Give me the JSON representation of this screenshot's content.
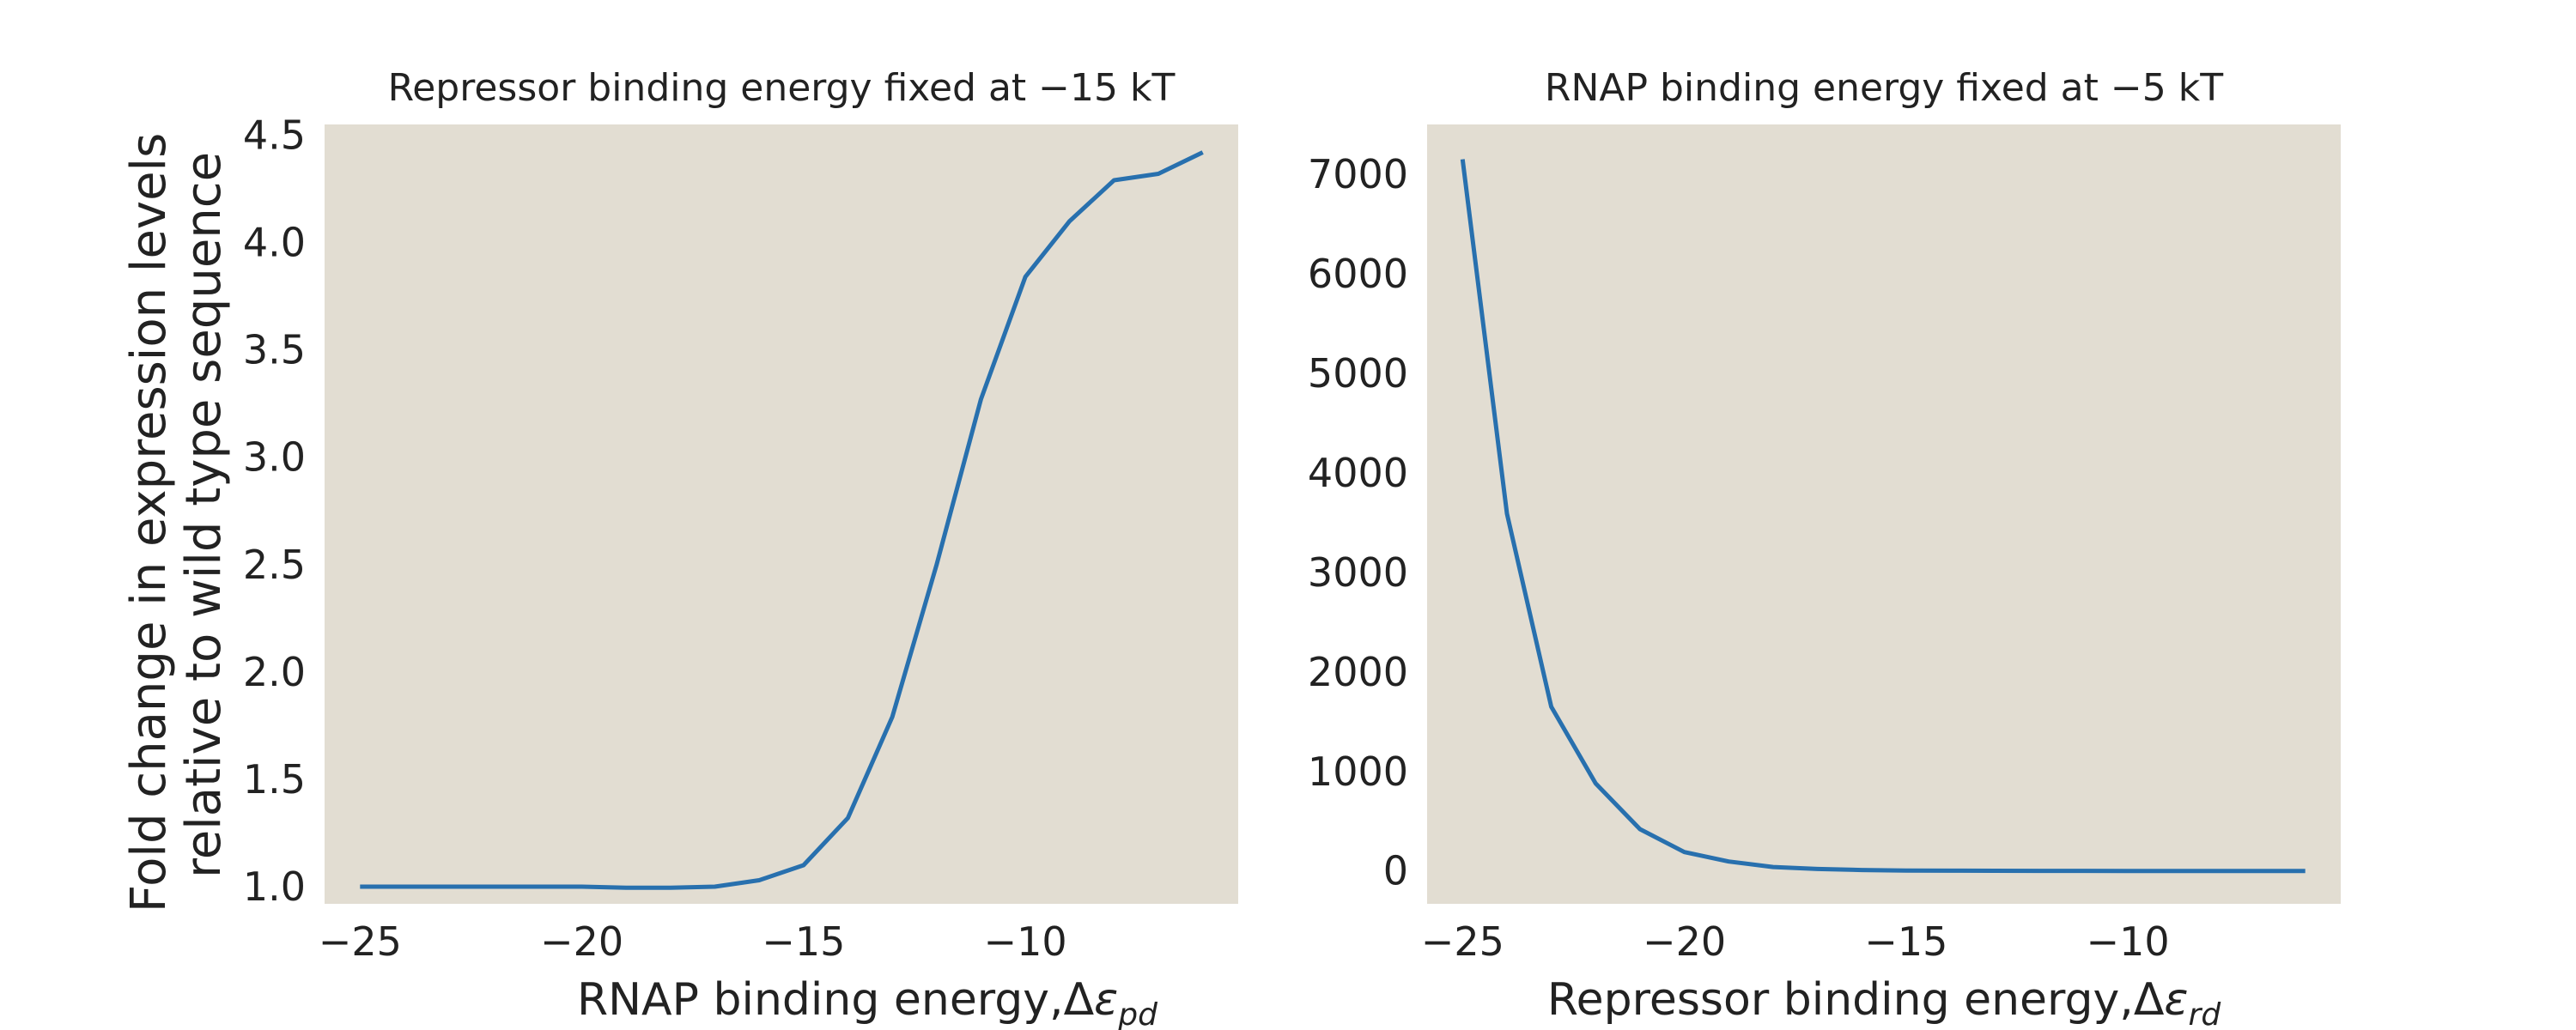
{
  "figure": {
    "background": "#ffffff",
    "panel_background": "#e2ddd2",
    "line_color": "#2870ae",
    "text_color": "#222222",
    "ylabel_line1": "Fold change in expression levels",
    "ylabel_line2": "relative to wild type sequence"
  },
  "chart_data": [
    {
      "type": "line",
      "title": "Repressor binding energy fixed at −15 kT",
      "xlabel_prefix": "RNAP binding energy,Δ",
      "xlabel_symbol": "ε",
      "xlabel_subscript": "pd",
      "ylabel": "Fold change in expression levels relative to wild type sequence",
      "grid": false,
      "xlim": [
        -25.8,
        -5.2
      ],
      "ylim": [
        0.92,
        4.55
      ],
      "xticks": [
        -25,
        -20,
        -15,
        -10
      ],
      "xtick_labels": [
        "−25",
        "−20",
        "−15",
        "−10"
      ],
      "yticks": [
        1.0,
        1.5,
        2.0,
        2.5,
        3.0,
        3.5,
        4.0,
        4.5
      ],
      "ytick_labels": [
        "1.0",
        "1.5",
        "2.0",
        "2.5",
        "3.0",
        "3.5",
        "4.0",
        "4.5"
      ],
      "series": [
        {
          "x": [
            -25,
            -24,
            -23,
            -22,
            -21,
            -20,
            -19,
            -18,
            -17,
            -16,
            -15,
            -14,
            -13,
            -12,
            -11,
            -10,
            -9,
            -8,
            -7,
            -6
          ],
          "y": [
            1.0,
            1.0,
            1.0,
            1.0,
            1.0,
            1.0,
            0.995,
            0.995,
            1.0,
            1.03,
            1.1,
            1.32,
            1.79,
            2.5,
            3.27,
            3.84,
            4.1,
            4.29,
            4.32,
            4.42
          ]
        }
      ]
    },
    {
      "type": "line",
      "title": "RNAP binding energy fixed at −5 kT",
      "xlabel_prefix": "Repressor binding energy,Δ",
      "xlabel_symbol": "ε",
      "xlabel_subscript": "rd",
      "grid": false,
      "xlim": [
        -25.8,
        -5.2
      ],
      "ylim": [
        -330,
        7500
      ],
      "xticks": [
        -25,
        -20,
        -15,
        -10
      ],
      "xtick_labels": [
        "−25",
        "−20",
        "−15",
        "−10"
      ],
      "yticks": [
        0,
        1000,
        2000,
        3000,
        4000,
        5000,
        6000,
        7000
      ],
      "ytick_labels": [
        "0",
        "1000",
        "2000",
        "3000",
        "4000",
        "5000",
        "6000",
        "7000"
      ],
      "series": [
        {
          "x": [
            -25,
            -24,
            -23,
            -22,
            -21,
            -20,
            -19,
            -18,
            -17,
            -16,
            -15,
            -14,
            -13,
            -12,
            -11,
            -10,
            -9,
            -8,
            -7,
            -6
          ],
          "y": [
            7150,
            3590,
            1650,
            880,
            420,
            190,
            95,
            40,
            20,
            10,
            5,
            3,
            2,
            1,
            1,
            0,
            0,
            0,
            0,
            0
          ]
        }
      ]
    }
  ]
}
